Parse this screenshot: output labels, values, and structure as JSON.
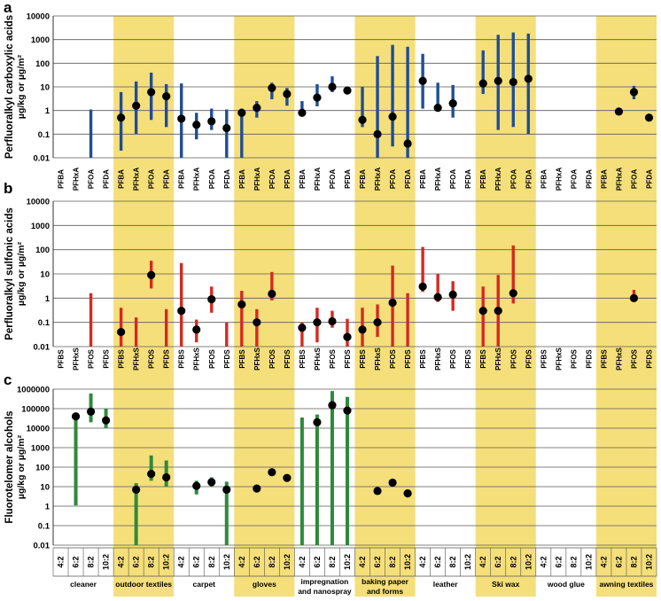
{
  "colors": {
    "band": "#f5df7a",
    "panel_a_bar": "#1f4e96",
    "panel_b_bar": "#d42a20",
    "panel_c_bar": "#2e8a3a",
    "point": "#000000",
    "grid": "#5a5a5a"
  },
  "categories": [
    "cleaner",
    "outdoor textiles",
    "carpet",
    "gloves",
    "impregnation and nanospray",
    "baking paper and forms",
    "leather",
    "Ski wax",
    "wood glue",
    "awning textiles"
  ],
  "category_lines": [
    [
      "cleaner"
    ],
    [
      "outdoor textiles"
    ],
    [
      "carpet"
    ],
    [
      "gloves"
    ],
    [
      "impregnation",
      "and nanospray"
    ],
    [
      "baking paper",
      "and forms"
    ],
    [
      "leather"
    ],
    [
      "Ski wax"
    ],
    [
      "wood glue"
    ],
    [
      "awning textiles"
    ]
  ],
  "highlighted_categories": [
    "outdoor textiles",
    "gloves",
    "baking paper and forms",
    "Ski wax",
    "awning textiles"
  ],
  "chart_data": [
    {
      "type": "range-bar",
      "panel": "a",
      "ylabel": "Perfluoralkyl carboxylic acids",
      "yunit": "µg/kg or µg/m²",
      "yscale": "log",
      "ylim": [
        0.01,
        10000
      ],
      "yticks": [
        "10000",
        "1000",
        "100",
        "10",
        "1",
        "0.1",
        "0.01"
      ],
      "compounds": [
        "PFBA",
        "PFHxA",
        "PFOA",
        "PFDA"
      ],
      "data": [
        [
          {
            "min": null,
            "max": null,
            "median": null
          },
          {
            "min": null,
            "max": null,
            "median": null
          },
          {
            "min": 0.01,
            "max": 1.1,
            "median": null
          },
          {
            "min": null,
            "max": null,
            "median": null
          }
        ],
        [
          {
            "min": 0.02,
            "max": 6,
            "median": 0.5
          },
          {
            "min": 0.1,
            "max": 17,
            "median": 1.6
          },
          {
            "min": 0.4,
            "max": 40,
            "median": 6
          },
          {
            "min": 0.2,
            "max": 13,
            "median": 4
          }
        ],
        [
          {
            "min": 0.01,
            "max": 14,
            "median": 0.45
          },
          {
            "min": 0.06,
            "max": 0.8,
            "median": 0.25
          },
          {
            "min": 0.15,
            "max": 1.2,
            "median": 0.35
          },
          {
            "min": 0.01,
            "max": 1.1,
            "median": 0.18
          }
        ],
        [
          {
            "min": 0.01,
            "max": 1.2,
            "median": 0.8
          },
          {
            "min": 0.5,
            "max": 2.5,
            "median": 1.3
          },
          {
            "min": 3,
            "max": 15,
            "median": 9
          },
          {
            "min": 1.6,
            "max": 9,
            "median": 5
          }
        ],
        [
          {
            "min": 0.6,
            "max": 2.5,
            "median": 0.8
          },
          {
            "min": 1.5,
            "max": 13,
            "median": 3.5
          },
          {
            "min": 6,
            "max": 28,
            "median": 10
          },
          {
            "min": 5,
            "max": 10,
            "median": 7
          }
        ],
        [
          {
            "min": 0.2,
            "max": 10,
            "median": 0.4
          },
          {
            "min": 0.01,
            "max": 200,
            "median": 0.1
          },
          {
            "min": 0.03,
            "max": 600,
            "median": 0.55
          },
          {
            "min": 0.01,
            "max": 500,
            "median": 0.04
          }
        ],
        [
          {
            "min": 1.2,
            "max": 250,
            "median": 18
          },
          {
            "min": 1,
            "max": 15,
            "median": 1.3
          },
          {
            "min": 0.5,
            "max": 12,
            "median": 2
          },
          {
            "min": null,
            "max": null,
            "median": null
          }
        ],
        [
          {
            "min": 5,
            "max": 350,
            "median": 14
          },
          {
            "min": 0.15,
            "max": 1600,
            "median": 18
          },
          {
            "min": 0.2,
            "max": 2000,
            "median": 16
          },
          {
            "min": 0.1,
            "max": 1800,
            "median": 22
          }
        ],
        [
          {
            "min": null,
            "max": null,
            "median": null
          },
          {
            "min": null,
            "max": null,
            "median": null
          },
          {
            "min": null,
            "max": null,
            "median": null
          },
          {
            "min": null,
            "max": null,
            "median": null
          }
        ],
        [
          {
            "min": null,
            "max": null,
            "median": null
          },
          {
            "min": 0.7,
            "max": 1.2,
            "median": 0.9
          },
          {
            "min": 3,
            "max": 11,
            "median": 6
          },
          {
            "min": 0.4,
            "max": 0.6,
            "median": 0.5
          }
        ]
      ]
    },
    {
      "type": "range-bar",
      "panel": "b",
      "ylabel": "Perfluoralkyl sulfonic acids",
      "yunit": "µg/kg or µg/m²",
      "yscale": "log",
      "ylim": [
        0.01,
        10000
      ],
      "yticks": [
        "10000",
        "1000",
        "100",
        "10",
        "1",
        "0.1",
        "0.01"
      ],
      "compounds": [
        "PFBS",
        "PFHxS",
        "PFOS",
        "PFDS"
      ],
      "data": [
        [
          {
            "min": null,
            "max": null,
            "median": null
          },
          {
            "min": null,
            "max": null,
            "median": null
          },
          {
            "min": 0.01,
            "max": 1.6,
            "median": null
          },
          {
            "min": null,
            "max": null,
            "median": null
          }
        ],
        [
          {
            "min": 0.01,
            "max": 0.4,
            "median": 0.04
          },
          {
            "min": 0.01,
            "max": 0.16,
            "median": null
          },
          {
            "min": 2.5,
            "max": 35,
            "median": 9
          },
          {
            "min": 0.01,
            "max": 0.35,
            "median": null
          }
        ],
        [
          {
            "min": 0.01,
            "max": 28,
            "median": 0.3
          },
          {
            "min": 0.015,
            "max": 0.13,
            "median": 0.05
          },
          {
            "min": 0.25,
            "max": 3,
            "median": 0.9
          },
          {
            "min": 0.01,
            "max": 0.1,
            "median": null
          }
        ],
        [
          {
            "min": 0.01,
            "max": 2,
            "median": 0.55
          },
          {
            "min": 0.01,
            "max": 0.35,
            "median": 0.1
          },
          {
            "min": 0.8,
            "max": 12,
            "median": 1.5
          },
          {
            "min": null,
            "max": null,
            "median": null
          }
        ],
        [
          {
            "min": 0.01,
            "max": 0.1,
            "median": 0.06
          },
          {
            "min": 0.015,
            "max": 0.4,
            "median": 0.1
          },
          {
            "min": 0.06,
            "max": 0.3,
            "median": 0.11
          },
          {
            "min": 0.01,
            "max": 0.14,
            "median": 0.025
          }
        ],
        [
          {
            "min": 0.01,
            "max": 0.4,
            "median": 0.05
          },
          {
            "min": 0.025,
            "max": 0.55,
            "median": 0.1
          },
          {
            "min": 0.01,
            "max": 22,
            "median": 0.65
          },
          {
            "min": 0.01,
            "max": 1.6,
            "median": null
          }
        ],
        [
          {
            "min": 1.8,
            "max": 130,
            "median": 3
          },
          {
            "min": 0.7,
            "max": 10,
            "median": 1.1
          },
          {
            "min": 0.3,
            "max": 5,
            "median": 1.4
          },
          {
            "min": null,
            "max": null,
            "median": null
          }
        ],
        [
          {
            "min": 0.01,
            "max": 3,
            "median": 0.3
          },
          {
            "min": 0.01,
            "max": 9,
            "median": 0.3
          },
          {
            "min": 0.6,
            "max": 150,
            "median": 1.6
          },
          {
            "min": null,
            "max": null,
            "median": null
          }
        ],
        [
          {
            "min": null,
            "max": null,
            "median": null
          },
          {
            "min": null,
            "max": null,
            "median": null
          },
          {
            "min": null,
            "max": null,
            "median": null
          },
          {
            "min": null,
            "max": null,
            "median": null
          }
        ],
        [
          {
            "min": null,
            "max": null,
            "median": null
          },
          {
            "min": null,
            "max": null,
            "median": null
          },
          {
            "min": 0.7,
            "max": 2.2,
            "median": 1
          },
          {
            "min": null,
            "max": null,
            "median": null
          }
        ]
      ]
    },
    {
      "type": "range-bar",
      "panel": "c",
      "ylabel": "Fluorotelomer alcohols",
      "yunit": "µg/kg or µg/m²",
      "yscale": "log",
      "ylim": [
        0.01,
        1000000
      ],
      "yticks": [
        "1000000",
        "100000",
        "10000",
        "1000",
        "100",
        "10",
        "1",
        "0.1",
        "0.01"
      ],
      "compounds": [
        "4:2",
        "6:2",
        "8:2",
        "10:2"
      ],
      "data": [
        [
          {
            "min": null,
            "max": null,
            "median": null
          },
          {
            "min": 1.1,
            "max": 50000,
            "median": 40000
          },
          {
            "min": 20000,
            "max": 600000,
            "median": 70000
          },
          {
            "min": 10000,
            "max": 100000,
            "median": 25000
          }
        ],
        [
          {
            "min": null,
            "max": null,
            "median": null
          },
          {
            "min": 0.01,
            "max": 15,
            "median": 7
          },
          {
            "min": 20,
            "max": 400,
            "median": 45
          },
          {
            "min": 10,
            "max": 220,
            "median": 30
          }
        ],
        [
          {
            "min": null,
            "max": null,
            "median": null
          },
          {
            "min": 4,
            "max": 20,
            "median": 11
          },
          {
            "min": 10,
            "max": 30,
            "median": 17
          },
          {
            "min": 0.01,
            "max": 18,
            "median": 7
          }
        ],
        [
          {
            "min": null,
            "max": null,
            "median": null
          },
          {
            "min": 7,
            "max": 10,
            "median": 8
          },
          {
            "min": 45,
            "max": 60,
            "median": 55
          },
          {
            "min": 22,
            "max": 32,
            "median": 28
          }
        ],
        [
          {
            "min": 0.01,
            "max": 35000,
            "median": null
          },
          {
            "min": 0.01,
            "max": 50000,
            "median": 20000
          },
          {
            "min": 0.01,
            "max": 800000,
            "median": 150000
          },
          {
            "min": 0.01,
            "max": 400000,
            "median": 80000
          }
        ],
        [
          {
            "min": null,
            "max": null,
            "median": null
          },
          {
            "min": 5,
            "max": 7,
            "median": 6
          },
          {
            "min": 14,
            "max": 18,
            "median": 16
          },
          {
            "min": 4,
            "max": 5,
            "median": 4.5
          }
        ],
        [
          {
            "min": null,
            "max": null,
            "median": null
          },
          {
            "min": null,
            "max": null,
            "median": null
          },
          {
            "min": null,
            "max": null,
            "median": null
          },
          {
            "min": null,
            "max": null,
            "median": null
          }
        ],
        [
          {
            "min": null,
            "max": null,
            "median": null
          },
          {
            "min": null,
            "max": null,
            "median": null
          },
          {
            "min": null,
            "max": null,
            "median": null
          },
          {
            "min": null,
            "max": null,
            "median": null
          }
        ],
        [
          {
            "min": null,
            "max": null,
            "median": null
          },
          {
            "min": null,
            "max": null,
            "median": null
          },
          {
            "min": null,
            "max": null,
            "median": null
          },
          {
            "min": null,
            "max": null,
            "median": null
          }
        ],
        [
          {
            "min": null,
            "max": null,
            "median": null
          },
          {
            "min": null,
            "max": null,
            "median": null
          },
          {
            "min": null,
            "max": null,
            "median": null
          },
          {
            "min": null,
            "max": null,
            "median": null
          }
        ]
      ]
    }
  ]
}
